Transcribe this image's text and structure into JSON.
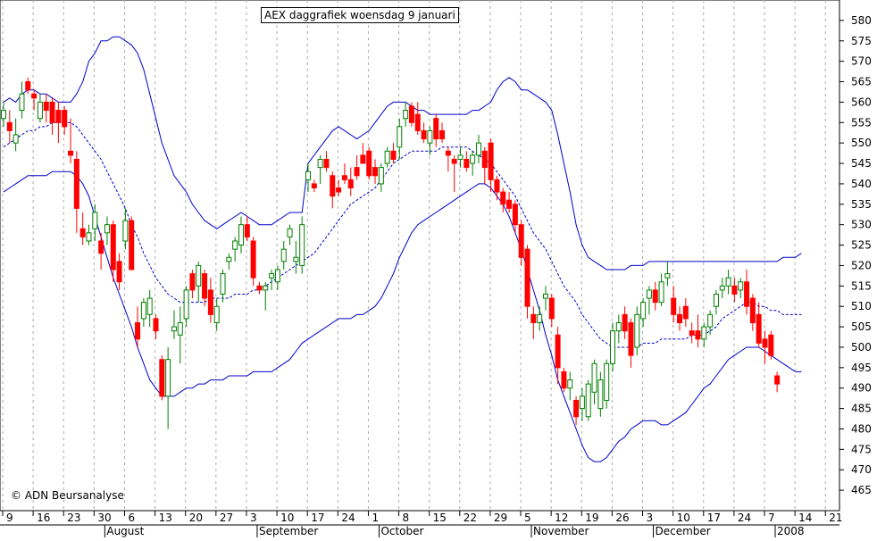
{
  "chart_data": {
    "type": "candlestick",
    "title": "AEX daggrafiek woensdag 9 januari",
    "copyright": "© ADN Beursanalyse",
    "ylim": [
      460,
      585
    ],
    "y_ticks": [
      465,
      470,
      475,
      480,
      485,
      490,
      495,
      500,
      505,
      510,
      515,
      520,
      525,
      530,
      535,
      540,
      545,
      550,
      555,
      560,
      565,
      570,
      575,
      580
    ],
    "x_ticks": [
      "9",
      "16",
      "23",
      "30",
      "6",
      "13",
      "20",
      "27",
      "3",
      "10",
      "17",
      "24",
      "1",
      "8",
      "15",
      "22",
      "29",
      "5",
      "12",
      "19",
      "26",
      "3",
      "10",
      "17",
      "24",
      "7",
      "14",
      "21"
    ],
    "months": [
      "August",
      "September",
      "October",
      "November",
      "December",
      "2008"
    ],
    "colors": {
      "up": "#008000",
      "down": "#ff0000",
      "band": "#0000cc",
      "grid": "#aaaaaa"
    },
    "candles": [
      {
        "o": 556,
        "h": 560,
        "l": 554,
        "c": 558
      },
      {
        "o": 555,
        "h": 558,
        "l": 550,
        "c": 553
      },
      {
        "o": 550,
        "h": 556,
        "l": 548,
        "c": 552
      },
      {
        "o": 558,
        "h": 565,
        "l": 556,
        "c": 562
      },
      {
        "o": 565,
        "h": 566,
        "l": 562,
        "c": 563
      },
      {
        "o": 562,
        "h": 563,
        "l": 558,
        "c": 561
      },
      {
        "o": 556,
        "h": 562,
        "l": 555,
        "c": 560
      },
      {
        "o": 560,
        "h": 562,
        "l": 555,
        "c": 558
      },
      {
        "o": 560,
        "h": 561,
        "l": 552,
        "c": 555
      },
      {
        "o": 558,
        "h": 560,
        "l": 550,
        "c": 555
      },
      {
        "o": 558,
        "h": 559,
        "l": 552,
        "c": 554
      },
      {
        "o": 548,
        "h": 556,
        "l": 545,
        "c": 547
      },
      {
        "o": 546,
        "h": 548,
        "l": 528,
        "c": 534
      },
      {
        "o": 529,
        "h": 533,
        "l": 525,
        "c": 527
      },
      {
        "o": 526,
        "h": 530,
        "l": 525,
        "c": 528
      },
      {
        "o": 529,
        "h": 535,
        "l": 526,
        "c": 533
      },
      {
        "o": 526,
        "h": 528,
        "l": 519,
        "c": 523
      },
      {
        "o": 528,
        "h": 532,
        "l": 525,
        "c": 530
      },
      {
        "o": 530,
        "h": 531,
        "l": 516,
        "c": 519
      },
      {
        "o": 521,
        "h": 523,
        "l": 514,
        "c": 516
      },
      {
        "o": 526,
        "h": 534,
        "l": 524,
        "c": 531
      },
      {
        "o": 531,
        "h": 532,
        "l": 519,
        "c": 519
      },
      {
        "o": 506,
        "h": 510,
        "l": 500,
        "c": 502
      },
      {
        "o": 507,
        "h": 512,
        "l": 505,
        "c": 511
      },
      {
        "o": 508,
        "h": 514,
        "l": 505,
        "c": 512
      },
      {
        "o": 507,
        "h": 508,
        "l": 502,
        "c": 504
      },
      {
        "o": 497,
        "h": 498,
        "l": 487,
        "c": 488
      },
      {
        "o": 488,
        "h": 500,
        "l": 480,
        "c": 497
      },
      {
        "o": 504,
        "h": 509,
        "l": 502,
        "c": 505
      },
      {
        "o": 503,
        "h": 510,
        "l": 496,
        "c": 506
      },
      {
        "o": 507,
        "h": 515,
        "l": 505,
        "c": 514
      },
      {
        "o": 518,
        "h": 519,
        "l": 512,
        "c": 514
      },
      {
        "o": 515,
        "h": 521,
        "l": 511,
        "c": 520
      },
      {
        "o": 518,
        "h": 519,
        "l": 510,
        "c": 512
      },
      {
        "o": 514,
        "h": 517,
        "l": 506,
        "c": 508
      },
      {
        "o": 506,
        "h": 512,
        "l": 504,
        "c": 510
      },
      {
        "o": 513,
        "h": 519,
        "l": 511,
        "c": 518
      },
      {
        "o": 521,
        "h": 523,
        "l": 519,
        "c": 522
      },
      {
        "o": 524,
        "h": 527,
        "l": 521,
        "c": 526
      },
      {
        "o": 525,
        "h": 532,
        "l": 523,
        "c": 530
      },
      {
        "o": 530,
        "h": 532,
        "l": 526,
        "c": 527
      },
      {
        "o": 526,
        "h": 527,
        "l": 515,
        "c": 517
      },
      {
        "o": 515,
        "h": 516,
        "l": 513,
        "c": 514
      },
      {
        "o": 514,
        "h": 516,
        "l": 509,
        "c": 515
      },
      {
        "o": 517,
        "h": 519,
        "l": 514,
        "c": 518
      },
      {
        "o": 516,
        "h": 520,
        "l": 514,
        "c": 519
      },
      {
        "o": 521,
        "h": 526,
        "l": 519,
        "c": 524
      },
      {
        "o": 527,
        "h": 530,
        "l": 525,
        "c": 529
      },
      {
        "o": 521,
        "h": 526,
        "l": 518,
        "c": 522
      },
      {
        "o": 520,
        "h": 532,
        "l": 518,
        "c": 530
      },
      {
        "o": 541,
        "h": 545,
        "l": 538,
        "c": 543
      },
      {
        "o": 540,
        "h": 541,
        "l": 538,
        "c": 539
      },
      {
        "o": 544,
        "h": 547,
        "l": 540,
        "c": 546
      },
      {
        "o": 546,
        "h": 548,
        "l": 543,
        "c": 544
      },
      {
        "o": 542,
        "h": 543,
        "l": 534,
        "c": 537
      },
      {
        "o": 539,
        "h": 541,
        "l": 537,
        "c": 538
      },
      {
        "o": 542,
        "h": 545,
        "l": 540,
        "c": 541
      },
      {
        "o": 541,
        "h": 544,
        "l": 537,
        "c": 539
      },
      {
        "o": 544,
        "h": 547,
        "l": 541,
        "c": 542
      },
      {
        "o": 547,
        "h": 550,
        "l": 545,
        "c": 545
      },
      {
        "o": 548,
        "h": 549,
        "l": 541,
        "c": 542
      },
      {
        "o": 544,
        "h": 546,
        "l": 540,
        "c": 542
      },
      {
        "o": 540,
        "h": 545,
        "l": 538,
        "c": 544
      },
      {
        "o": 545,
        "h": 549,
        "l": 544,
        "c": 548
      },
      {
        "o": 548,
        "h": 550,
        "l": 545,
        "c": 546
      },
      {
        "o": 549,
        "h": 556,
        "l": 546,
        "c": 554
      },
      {
        "o": 556,
        "h": 560,
        "l": 554,
        "c": 558
      },
      {
        "o": 559,
        "h": 560,
        "l": 554,
        "c": 555
      },
      {
        "o": 557,
        "h": 560,
        "l": 552,
        "c": 553
      },
      {
        "o": 553,
        "h": 555,
        "l": 550,
        "c": 551
      },
      {
        "o": 550,
        "h": 554,
        "l": 547,
        "c": 553
      },
      {
        "o": 556,
        "h": 557,
        "l": 549,
        "c": 551
      },
      {
        "o": 553,
        "h": 555,
        "l": 550,
        "c": 551
      },
      {
        "o": 548,
        "h": 549,
        "l": 543,
        "c": 547
      },
      {
        "o": 546,
        "h": 547,
        "l": 538,
        "c": 545
      },
      {
        "o": 546,
        "h": 549,
        "l": 544,
        "c": 547
      },
      {
        "o": 546,
        "h": 548,
        "l": 543,
        "c": 544
      },
      {
        "o": 545,
        "h": 548,
        "l": 542,
        "c": 547
      },
      {
        "o": 547,
        "h": 552,
        "l": 545,
        "c": 550
      },
      {
        "o": 548,
        "h": 549,
        "l": 540,
        "c": 544
      },
      {
        "o": 550,
        "h": 551,
        "l": 538,
        "c": 541
      },
      {
        "o": 541,
        "h": 542,
        "l": 536,
        "c": 538
      },
      {
        "o": 538,
        "h": 539,
        "l": 533,
        "c": 535
      },
      {
        "o": 536,
        "h": 538,
        "l": 533,
        "c": 534
      },
      {
        "o": 535,
        "h": 536,
        "l": 528,
        "c": 530
      },
      {
        "o": 530,
        "h": 531,
        "l": 520,
        "c": 522
      },
      {
        "o": 524,
        "h": 525,
        "l": 507,
        "c": 510
      },
      {
        "o": 508,
        "h": 510,
        "l": 502,
        "c": 506
      },
      {
        "o": 506,
        "h": 510,
        "l": 504,
        "c": 508
      },
      {
        "o": 512,
        "h": 515,
        "l": 509,
        "c": 513
      },
      {
        "o": 512,
        "h": 513,
        "l": 505,
        "c": 507
      },
      {
        "o": 503,
        "h": 505,
        "l": 491,
        "c": 495
      },
      {
        "o": 494,
        "h": 495,
        "l": 489,
        "c": 490
      },
      {
        "o": 490,
        "h": 494,
        "l": 487,
        "c": 492
      },
      {
        "o": 487,
        "h": 488,
        "l": 481,
        "c": 483
      },
      {
        "o": 485,
        "h": 490,
        "l": 482,
        "c": 488
      },
      {
        "o": 483,
        "h": 492,
        "l": 482,
        "c": 491
      },
      {
        "o": 489,
        "h": 497,
        "l": 486,
        "c": 496
      },
      {
        "o": 485,
        "h": 494,
        "l": 483,
        "c": 492
      },
      {
        "o": 487,
        "h": 497,
        "l": 485,
        "c": 496
      },
      {
        "o": 496,
        "h": 506,
        "l": 494,
        "c": 504
      },
      {
        "o": 504,
        "h": 508,
        "l": 501,
        "c": 506
      },
      {
        "o": 508,
        "h": 510,
        "l": 502,
        "c": 504
      },
      {
        "o": 506,
        "h": 507,
        "l": 495,
        "c": 498
      },
      {
        "o": 500,
        "h": 510,
        "l": 498,
        "c": 508
      },
      {
        "o": 507,
        "h": 512,
        "l": 505,
        "c": 511
      },
      {
        "o": 512,
        "h": 515,
        "l": 508,
        "c": 514
      },
      {
        "o": 514,
        "h": 516,
        "l": 509,
        "c": 511
      },
      {
        "o": 511,
        "h": 518,
        "l": 510,
        "c": 516
      },
      {
        "o": 517,
        "h": 521,
        "l": 515,
        "c": 518
      },
      {
        "o": 512,
        "h": 515,
        "l": 506,
        "c": 508
      },
      {
        "o": 508,
        "h": 510,
        "l": 504,
        "c": 506
      },
      {
        "o": 510,
        "h": 512,
        "l": 505,
        "c": 507
      },
      {
        "o": 504,
        "h": 506,
        "l": 501,
        "c": 503
      },
      {
        "o": 504,
        "h": 508,
        "l": 500,
        "c": 502
      },
      {
        "o": 502,
        "h": 506,
        "l": 500,
        "c": 505
      },
      {
        "o": 505,
        "h": 509,
        "l": 503,
        "c": 508
      },
      {
        "o": 510,
        "h": 514,
        "l": 508,
        "c": 513
      },
      {
        "o": 514,
        "h": 517,
        "l": 512,
        "c": 515
      },
      {
        "o": 515,
        "h": 519,
        "l": 513,
        "c": 517
      },
      {
        "o": 515,
        "h": 517,
        "l": 511,
        "c": 513
      },
      {
        "o": 514,
        "h": 517,
        "l": 512,
        "c": 516
      },
      {
        "o": 516,
        "h": 519,
        "l": 508,
        "c": 510
      },
      {
        "o": 512,
        "h": 513,
        "l": 504,
        "c": 506
      },
      {
        "o": 508,
        "h": 511,
        "l": 500,
        "c": 501
      },
      {
        "o": 502,
        "h": 504,
        "l": 496,
        "c": 500
      },
      {
        "o": 503,
        "h": 504,
        "l": 497,
        "c": 498
      },
      {
        "o": 493,
        "h": 494,
        "l": 489,
        "c": 491
      }
    ],
    "bands": {
      "upper": [
        560,
        561,
        560,
        562,
        563,
        563,
        562,
        562,
        561,
        560,
        560,
        560,
        562,
        565,
        570,
        572,
        575,
        575,
        576,
        576,
        575,
        574,
        572,
        568,
        562,
        556,
        550,
        546,
        542,
        540,
        538,
        535,
        533,
        531,
        530,
        529,
        530,
        531,
        532,
        533,
        532,
        531,
        530,
        530,
        530,
        531,
        532,
        533,
        533,
        533,
        545,
        547,
        549,
        551,
        553,
        554,
        553,
        552,
        551,
        552,
        553,
        555,
        557,
        559,
        560,
        560,
        560,
        559,
        558,
        558,
        557,
        557,
        557,
        557,
        557,
        557,
        557,
        558,
        558,
        559,
        560,
        563,
        565,
        566,
        565,
        563,
        563,
        562,
        561,
        560,
        558,
        552,
        545,
        538,
        530,
        525,
        522,
        521,
        520,
        519,
        519,
        519,
        519,
        520,
        520,
        520,
        521,
        521,
        521,
        521,
        521,
        521,
        521,
        521,
        521,
        521,
        521,
        521,
        521,
        521,
        521,
        521,
        521,
        521,
        521,
        521,
        521,
        521,
        522,
        522,
        522,
        523
      ],
      "middle": [
        549,
        550,
        551,
        552,
        553,
        553,
        554,
        554,
        555,
        555,
        555,
        555,
        554,
        552,
        550,
        548,
        546,
        543,
        540,
        537,
        534,
        530,
        527,
        523,
        520,
        517,
        515,
        513,
        512,
        511,
        511,
        511,
        511,
        511,
        512,
        512,
        512,
        512,
        513,
        513,
        513,
        514,
        514,
        515,
        516,
        517,
        518,
        519,
        520,
        521,
        522,
        523,
        525,
        527,
        529,
        531,
        533,
        535,
        536,
        537,
        538,
        539,
        541,
        543,
        545,
        546,
        547,
        548,
        548,
        548,
        548,
        548,
        549,
        549,
        549,
        549,
        549,
        548,
        547,
        546,
        545,
        543,
        541,
        539,
        537,
        534,
        531,
        528,
        526,
        524,
        521,
        518,
        515,
        513,
        511,
        508,
        506,
        504,
        502,
        501,
        500,
        500,
        500,
        500,
        500,
        501,
        501,
        501,
        502,
        502,
        502,
        502,
        502,
        503,
        503,
        503,
        504,
        505,
        507,
        508,
        509,
        510,
        511,
        511,
        510,
        510,
        509,
        509,
        508,
        508,
        508,
        508
      ],
      "lower": [
        538,
        539,
        540,
        541,
        542,
        542,
        542,
        542,
        543,
        543,
        543,
        543,
        542,
        540,
        537,
        532,
        527,
        522,
        517,
        513,
        509,
        505,
        500,
        496,
        492,
        490,
        488,
        488,
        488,
        489,
        490,
        490,
        491,
        491,
        492,
        492,
        492,
        493,
        493,
        493,
        493,
        494,
        494,
        494,
        494,
        495,
        496,
        497,
        499,
        501,
        502,
        503,
        504,
        505,
        506,
        507,
        507,
        507,
        508,
        508,
        509,
        510,
        512,
        515,
        518,
        522,
        525,
        528,
        530,
        531,
        532,
        533,
        534,
        535,
        536,
        537,
        538,
        539,
        540,
        540,
        539,
        537,
        535,
        532,
        528,
        524,
        519,
        514,
        509,
        503,
        498,
        492,
        488,
        484,
        480,
        476,
        473,
        472,
        472,
        473,
        475,
        477,
        478,
        480,
        481,
        482,
        482,
        482,
        481,
        481,
        482,
        483,
        484,
        486,
        488,
        490,
        491,
        493,
        495,
        497,
        498,
        499,
        500,
        500,
        500,
        499,
        498,
        497,
        496,
        495,
        494,
        494
      ]
    }
  }
}
